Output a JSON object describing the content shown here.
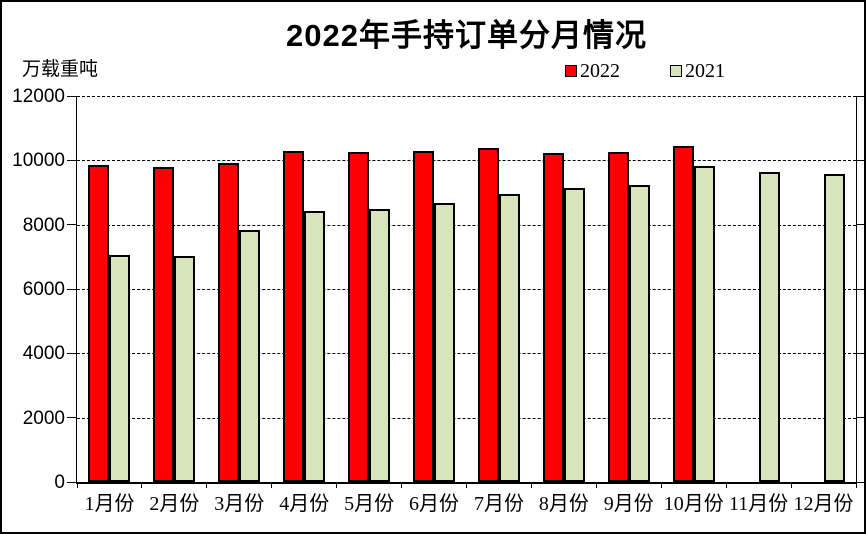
{
  "title": "2022年手持订单分月情况",
  "unit_label": "万载重吨",
  "legend": [
    {
      "label": "2022",
      "color": "#ff0000"
    },
    {
      "label": "2021",
      "color": "#d8e4bc"
    }
  ],
  "chart_data": {
    "type": "bar",
    "title": "2022年手持订单分月情况",
    "ylabel": "万载重吨",
    "xlabel": "",
    "categories": [
      "1月份",
      "2月份",
      "3月份",
      "4月份",
      "5月份",
      "6月份",
      "7月份",
      "8月份",
      "9月份",
      "10月份",
      "11月份",
      "12月份"
    ],
    "series": [
      {
        "name": "2022",
        "color": "#ff0000",
        "values": [
          9850,
          9790,
          9930,
          10280,
          10250,
          10300,
          10370,
          10220,
          10270,
          10440,
          null,
          null
        ]
      },
      {
        "name": "2021",
        "color": "#d8e4bc",
        "values": [
          7070,
          7040,
          7840,
          8440,
          8490,
          8680,
          8950,
          9130,
          9220,
          9820,
          9630,
          9590
        ]
      }
    ],
    "ylim": [
      0,
      12000
    ],
    "ytick_step": 2000,
    "ytick_labels": [
      "0",
      "2000",
      "4000",
      "6000",
      "8000",
      "10000",
      "12000"
    ],
    "grid": true,
    "gridline_style": "dashed",
    "legend_position": "top-right",
    "bar_border_color": "#000000",
    "background": "#ffffff"
  }
}
